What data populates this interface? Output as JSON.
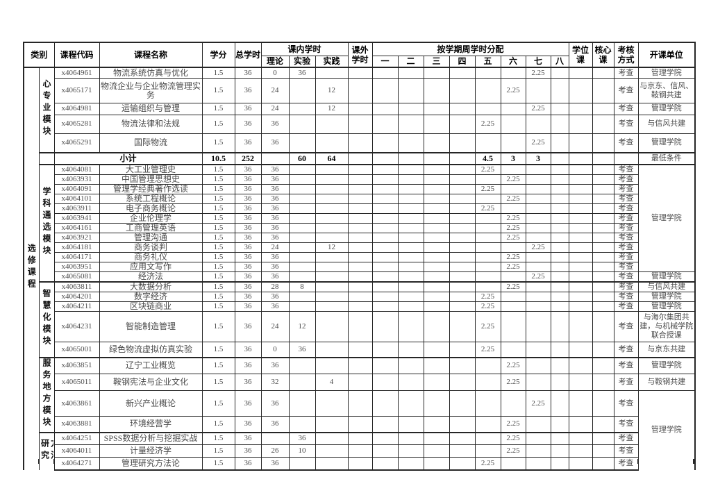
{
  "header": {
    "category": "类别",
    "course_code": "课程代码",
    "course_name": "课程名称",
    "credits": "学分",
    "total_hours": "总学时",
    "inclass": "课内学时",
    "inclass_sub": [
      "理论",
      "实验",
      "实践"
    ],
    "extra": "课外学时",
    "weekly": "按学期周学时分配",
    "semesters": [
      "一",
      "二",
      "三",
      "四",
      "五",
      "六",
      "七",
      "八"
    ],
    "degree": "学位课",
    "core": "核心课",
    "assess": "考核方式",
    "unit": "开课单位"
  },
  "category_label": "选修课程",
  "assess_value": "考查",
  "modules": [
    {
      "name": "心专业模块",
      "rows": [
        {
          "code": "x4064961",
          "name": "物流系统仿真与优化",
          "credits": "1.5",
          "total": "36",
          "theory": "0",
          "exp": "36",
          "prac": "",
          "sem": [
            "",
            "",
            "",
            "",
            "",
            "",
            "2.25",
            ""
          ],
          "assess": "考查",
          "unit": "管理学院"
        },
        {
          "code": "x4065171",
          "name": "物流企业与企业物流管理实务",
          "credits": "1.5",
          "total": "36",
          "theory": "24",
          "exp": "",
          "prac": "12",
          "sem": [
            "",
            "",
            "",
            "",
            "",
            "2.25",
            "",
            ""
          ],
          "assess": "考查",
          "unit": "与京东、信风、鞍钢共建"
        },
        {
          "code": "x4064981",
          "name": "运输组织与管理",
          "credits": "1.5",
          "total": "36",
          "theory": "24",
          "exp": "",
          "prac": "12",
          "sem": [
            "",
            "",
            "",
            "",
            "",
            "",
            "2.25",
            ""
          ],
          "assess": "考查",
          "unit": "管理学院"
        },
        {
          "code": "x4065281",
          "name": "物流法律和法规",
          "credits": "1.5",
          "total": "36",
          "theory": "36",
          "exp": "",
          "prac": "",
          "sem": [
            "",
            "",
            "",
            "",
            "2.25",
            "",
            "",
            ""
          ],
          "assess": "考查",
          "unit": "与信风共建"
        },
        {
          "code": "x4065291",
          "name": "国际物流",
          "credits": "1.5",
          "total": "36",
          "theory": "36",
          "exp": "",
          "prac": "",
          "sem": [
            "",
            "",
            "",
            "",
            "",
            "",
            "2.25",
            ""
          ],
          "assess": "考查",
          "unit": "管理学院"
        }
      ]
    },
    {
      "name": "学科通选模块",
      "rows": [
        {
          "code": "x4064081",
          "name": "大工业管理史",
          "credits": "1.5",
          "total": "36",
          "theory": "36",
          "exp": "",
          "prac": "",
          "sem": [
            "",
            "",
            "",
            "",
            "2.25",
            "",
            "",
            ""
          ],
          "assess": "考查",
          "unit": "管理学院",
          "unit_rs": 11
        },
        {
          "code": "x4063931",
          "name": "中国管理思想史",
          "credits": "1.5",
          "total": "36",
          "theory": "36",
          "exp": "",
          "prac": "",
          "sem": [
            "",
            "",
            "",
            "",
            "",
            "2.25",
            "",
            ""
          ],
          "assess": "考查",
          "unit": null
        },
        {
          "code": "x4064091",
          "name": "管理学经典著作选读",
          "credits": "1.5",
          "total": "36",
          "theory": "36",
          "exp": "",
          "prac": "",
          "sem": [
            "",
            "",
            "",
            "",
            "2.25",
            "",
            "",
            ""
          ],
          "assess": "考查",
          "unit": null
        },
        {
          "code": "x4064101",
          "name": "系统工程概论",
          "credits": "1.5",
          "total": "36",
          "theory": "36",
          "exp": "",
          "prac": "",
          "sem": [
            "",
            "",
            "",
            "",
            "",
            "2.25",
            "",
            ""
          ],
          "assess": "考查",
          "unit": null
        },
        {
          "code": "x4063911",
          "name": "电子商务概论",
          "credits": "1.5",
          "total": "36",
          "theory": "36",
          "exp": "",
          "prac": "",
          "sem": [
            "",
            "",
            "",
            "",
            "2.25",
            "",
            "",
            ""
          ],
          "assess": "考查",
          "unit": null
        },
        {
          "code": "x4063941",
          "name": "企业伦理学",
          "credits": "1.5",
          "total": "36",
          "theory": "36",
          "exp": "",
          "prac": "",
          "sem": [
            "",
            "",
            "",
            "",
            "",
            "2.25",
            "",
            ""
          ],
          "assess": "考查",
          "unit": null
        },
        {
          "code": "x4064161",
          "name": "工商管理英语",
          "credits": "1.5",
          "total": "36",
          "theory": "36",
          "exp": "",
          "prac": "",
          "sem": [
            "",
            "",
            "",
            "",
            "",
            "2.25",
            "",
            ""
          ],
          "assess": "考查",
          "unit": null
        },
        {
          "code": "x4063921",
          "name": "管理沟通",
          "credits": "1.5",
          "total": "36",
          "theory": "36",
          "exp": "",
          "prac": "",
          "sem": [
            "",
            "",
            "",
            "",
            "",
            "2.25",
            "",
            ""
          ],
          "assess": "考查",
          "unit": null
        },
        {
          "code": "x4064181",
          "name": "商务谈判",
          "credits": "1.5",
          "total": "36",
          "theory": "24",
          "exp": "",
          "prac": "12",
          "sem": [
            "",
            "",
            "",
            "",
            "",
            "",
            "2.25",
            ""
          ],
          "assess": "考查",
          "unit": null
        },
        {
          "code": "x4064171",
          "name": "商务礼仪",
          "credits": "1.5",
          "total": "36",
          "theory": "36",
          "exp": "",
          "prac": "",
          "sem": [
            "",
            "",
            "",
            "",
            "",
            "2.25",
            "",
            ""
          ],
          "assess": "考查",
          "unit": null
        },
        {
          "code": "x4063951",
          "name": "应用文写作",
          "credits": "1.5",
          "total": "36",
          "theory": "36",
          "exp": "",
          "prac": "",
          "sem": [
            "",
            "",
            "",
            "",
            "",
            "2.25",
            "",
            ""
          ],
          "assess": "考查",
          "unit": null
        },
        {
          "code": "x4065081",
          "name": "经济法",
          "credits": "1.5",
          "total": "36",
          "theory": "36",
          "exp": "",
          "prac": "",
          "sem": [
            "",
            "",
            "",
            "",
            "",
            "",
            "2.25",
            ""
          ],
          "assess": "考查",
          "unit": "管理学院"
        }
      ]
    },
    {
      "name": "智慧化模块",
      "rows": [
        {
          "code": "x4063811",
          "name": "大数据分析",
          "credits": "1.5",
          "total": "36",
          "theory": "28",
          "exp": "8",
          "prac": "",
          "sem": [
            "",
            "",
            "",
            "",
            "",
            "2.25",
            "",
            ""
          ],
          "assess": "考查",
          "unit": "与信风共建"
        },
        {
          "code": "x4064201",
          "name": "数字经济",
          "credits": "1.5",
          "total": "36",
          "theory": "36",
          "exp": "",
          "prac": "",
          "sem": [
            "",
            "",
            "",
            "",
            "2.25",
            "",
            "",
            ""
          ],
          "assess": "考查",
          "unit": "管理学院"
        },
        {
          "code": "x4064211",
          "name": "区块链商业",
          "credits": "1.5",
          "total": "36",
          "theory": "36",
          "exp": "",
          "prac": "",
          "sem": [
            "",
            "",
            "",
            "",
            "2.25",
            "",
            "",
            ""
          ],
          "assess": "考查",
          "unit": "管理学院"
        },
        {
          "code": "x4064231",
          "name": "智能制造管理",
          "credits": "1.5",
          "total": "36",
          "theory": "24",
          "exp": "12",
          "prac": "",
          "sem": [
            "",
            "",
            "",
            "",
            "2.25",
            "",
            "",
            ""
          ],
          "assess": "考查",
          "unit": "与海尔集团共建，与机械学院联合授课"
        },
        {
          "code": "x4065001",
          "name": "绿色物流虚拟仿真实验",
          "credits": "1.5",
          "total": "36",
          "theory": "0",
          "exp": "36",
          "prac": "",
          "sem": [
            "",
            "",
            "",
            "",
            "2.25",
            "",
            "",
            ""
          ],
          "assess": "考查",
          "unit": "与京东共建"
        }
      ]
    },
    {
      "name": "服务地方模块",
      "rows": [
        {
          "code": "x4063851",
          "name": "辽宁工业概览",
          "credits": "1.5",
          "total": "36",
          "theory": "36",
          "exp": "",
          "prac": "",
          "sem": [
            "",
            "",
            "",
            "",
            "",
            "2.25",
            "",
            ""
          ],
          "assess": "考查",
          "unit": "管理学院"
        },
        {
          "code": "x4065011",
          "name": "鞍钢宪法与企业文化",
          "credits": "1.5",
          "total": "36",
          "theory": "32",
          "exp": "",
          "prac": "4",
          "sem": [
            "",
            "",
            "",
            "",
            "",
            "2.25",
            "",
            ""
          ],
          "assess": "考查",
          "unit": "与鞍钢共建"
        },
        {
          "code": "x4063861",
          "name": "新兴产业概论",
          "credits": "1.5",
          "total": "36",
          "theory": "36",
          "exp": "",
          "prac": "",
          "sem": [
            "",
            "",
            "",
            "",
            "",
            "",
            "2.25",
            ""
          ],
          "assess": "考查",
          "unit": "管理学院",
          "unit_rs": 5
        },
        {
          "code": "x4063881",
          "name": "环境经营学",
          "credits": "1.5",
          "total": "36",
          "theory": "36",
          "exp": "",
          "prac": "",
          "sem": [
            "",
            "",
            "",
            "",
            "",
            "2.25",
            "",
            ""
          ],
          "assess": "考查",
          "unit": null
        }
      ]
    },
    {
      "name": "研究方法",
      "rows": [
        {
          "code": "x4064251",
          "name": "SPSS数据分析与挖掘实战",
          "credits": "1.5",
          "total": "36",
          "theory": "",
          "exp": "36",
          "prac": "",
          "sem": [
            "",
            "",
            "",
            "",
            "",
            "2.25",
            "",
            ""
          ],
          "assess": "考查",
          "unit": null
        },
        {
          "code": "x4064011",
          "name": "计量经济学",
          "credits": "1.5",
          "total": "36",
          "theory": "26",
          "exp": "10",
          "prac": "",
          "sem": [
            "",
            "",
            "",
            "",
            "",
            "2.25",
            "",
            ""
          ],
          "assess": "考查",
          "unit": null
        },
        {
          "code": "x4064271",
          "name": "管理研究方法论",
          "credits": "1.5",
          "total": "36",
          "theory": "36",
          "exp": "",
          "prac": "",
          "sem": [
            "",
            "",
            "",
            "",
            "2.25",
            "",
            "",
            ""
          ],
          "assess": "考查",
          "unit": null
        }
      ]
    }
  ],
  "subtotal": {
    "label": "小计",
    "credits": "10.5",
    "total": "252",
    "theory": "",
    "exp": "60",
    "prac": "64",
    "sem": [
      "",
      "",
      "",
      "",
      "4.5",
      "3",
      "3",
      ""
    ],
    "unit": "最低条件"
  }
}
